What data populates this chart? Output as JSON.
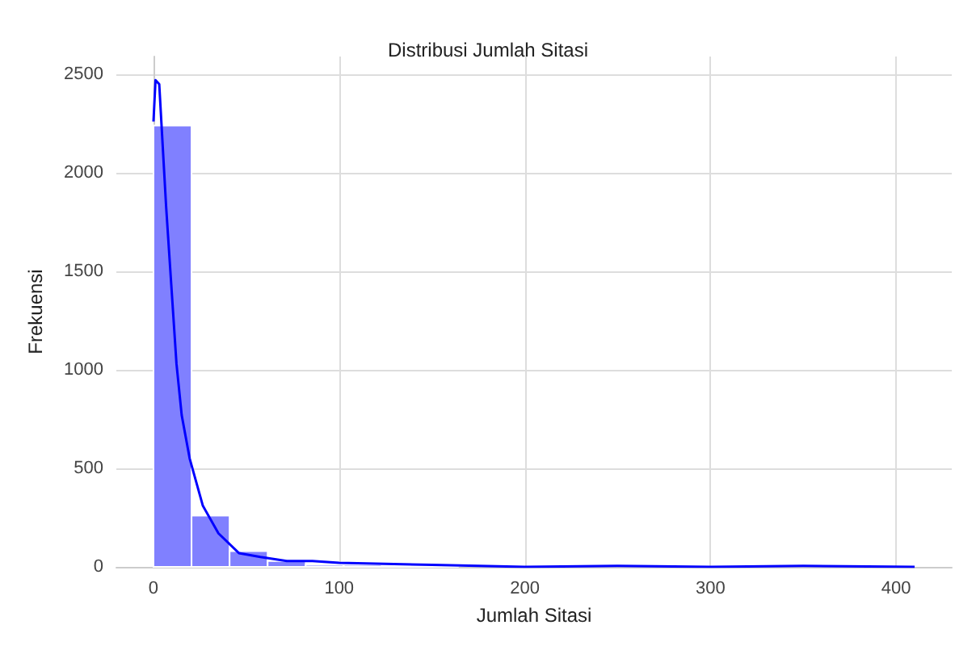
{
  "chart_data": {
    "type": "histogram",
    "title": "Distribusi Jumlah Sitasi",
    "xlabel": "Jumlah Sitasi",
    "ylabel": "Frekuensi",
    "bins": [
      0,
      20.5,
      41,
      61.5,
      82,
      102.5,
      123,
      143.5,
      164,
      184.5,
      205,
      225.5,
      246,
      266.5,
      287,
      307.5,
      328,
      348.5,
      369,
      389.5,
      410
    ],
    "values": [
      2240,
      260,
      80,
      30,
      10,
      10,
      5,
      5,
      null,
      null,
      0,
      0,
      0,
      0,
      0,
      0,
      0,
      0,
      0,
      0
    ],
    "color": "#8080ff",
    "series": [
      {
        "type": "line",
        "color": "#0000ff",
        "x": [
          0,
          1.1,
          3.1,
          6.8,
          9.6,
          12.4,
          15.2,
          19.5,
          26.6,
          35,
          46,
          57.6,
          71.8,
          85.6,
          100,
          150,
          200,
          250,
          300,
          350,
          410
        ],
        "values": [
          2260,
          2470,
          2450,
          1830,
          1430,
          1030,
          770,
          550,
          310,
          170,
          70,
          50,
          30,
          30,
          20,
          10,
          0,
          5,
          0,
          5,
          0
        ]
      }
    ],
    "xlim": [
      -20,
      430
    ],
    "ylim": [
      0,
      2590
    ],
    "xticks": [
      0,
      100,
      200,
      300,
      400
    ],
    "yticks": [
      0,
      500,
      1000,
      1500,
      2000,
      2500
    ],
    "grid": true,
    "line_style": "solid",
    "marker": "none"
  }
}
